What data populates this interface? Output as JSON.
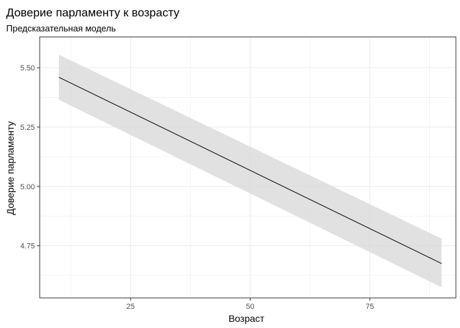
{
  "chart_data": {
    "type": "line",
    "title": "Доверие парламенту к возрасту",
    "subtitle": "Предсказательная модель",
    "xlabel": "Возраст",
    "ylabel": "Доверие парламенту",
    "xlim": [
      6,
      93
    ],
    "ylim": [
      4.53,
      5.63
    ],
    "x_ticks": [
      25,
      50,
      75
    ],
    "x_tick_labels": [
      "25",
      "50",
      "75"
    ],
    "y_ticks": [
      4.75,
      5.0,
      5.25,
      5.5
    ],
    "y_tick_labels": [
      "4.75",
      "5.00",
      "5.25",
      "5.50"
    ],
    "grid": true,
    "colors": {
      "line": "#000000",
      "ribbon": "#d9d9d9",
      "grid": "#ebebeb",
      "panel_border": "#333333"
    },
    "series": [
      {
        "x": [
          10,
          90
        ],
        "y": [
          5.46,
          4.675
        ],
        "ci_lower": [
          5.365,
          4.575
        ],
        "ci_upper": [
          5.555,
          4.78
        ]
      }
    ]
  }
}
